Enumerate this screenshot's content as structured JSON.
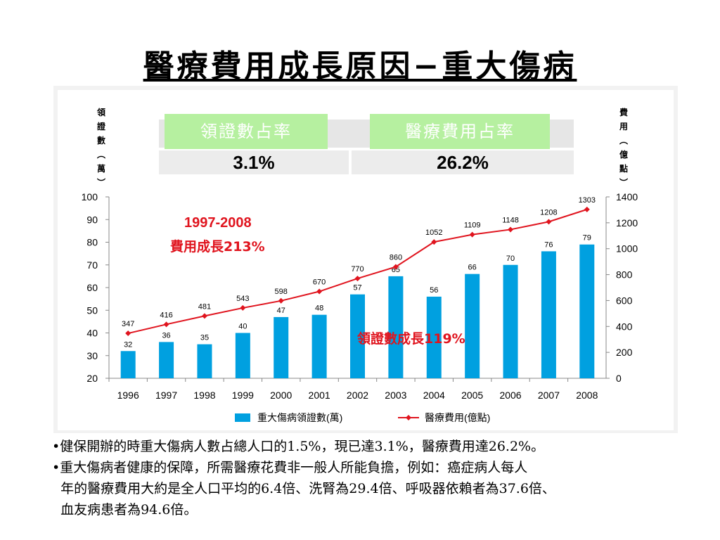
{
  "title": "醫療費用成長原因−重大傷病",
  "left_axis_label": [
    "領",
    "證",
    "數",
    "︵",
    "萬",
    "︶"
  ],
  "right_axis_label": [
    "費",
    "用",
    "︵",
    "億",
    "點",
    "︶"
  ],
  "stats": {
    "cert_share_label": "領證數占率",
    "cert_share_value": "3.1%",
    "cost_share_label": "醫療費用占率",
    "cost_share_value": "26.2%"
  },
  "annotations": {
    "cost_growth_years": "1997-2008",
    "cost_growth_text": "費用成長213%",
    "cert_growth_text": "領證數成長119%"
  },
  "chart_data": {
    "type": "bar",
    "categories": [
      "1996",
      "1997",
      "1998",
      "1999",
      "2000",
      "2001",
      "2002",
      "2003",
      "2004",
      "2005",
      "2006",
      "2007",
      "2008"
    ],
    "series": [
      {
        "name": "重大傷病領證數(萬)",
        "type": "bar",
        "axis": "left",
        "values": [
          32,
          36,
          35,
          40,
          47,
          48,
          57,
          65,
          56,
          66,
          70,
          76,
          79
        ],
        "color": "#00a0e0"
      },
      {
        "name": "醫療費用(億點)",
        "type": "line",
        "axis": "right",
        "values": [
          347,
          416,
          481,
          543,
          598,
          670,
          770,
          860,
          1052,
          1109,
          1148,
          1208,
          1303
        ],
        "color": "#e0141e"
      }
    ],
    "left_axis": {
      "ylim": [
        20,
        100
      ],
      "ticks": [
        "20",
        "30",
        "40",
        "50",
        "60",
        "70",
        "80",
        "90",
        "100"
      ]
    },
    "right_axis": {
      "ylim": [
        0,
        1400
      ],
      "ticks": [
        "0",
        "200",
        "400",
        "600",
        "800",
        "1000",
        "1200",
        "1400"
      ]
    },
    "grid": false,
    "legend_position": "bottom"
  },
  "notes": [
    "•健保開辦的時重大傷病人數占總人口的1.5%，現已達3.1%，醫療費用達26.2%。",
    "•重大傷病者健康的保障，所需醫療花費非一般人所能負擔，例如：癌症病人每人",
    "  年的醫療費用大約是全人口平均的6.4倍、洗腎為29.4倍、呼吸器依賴者為37.6倍、",
    "  血友病患者為94.6倍。"
  ]
}
